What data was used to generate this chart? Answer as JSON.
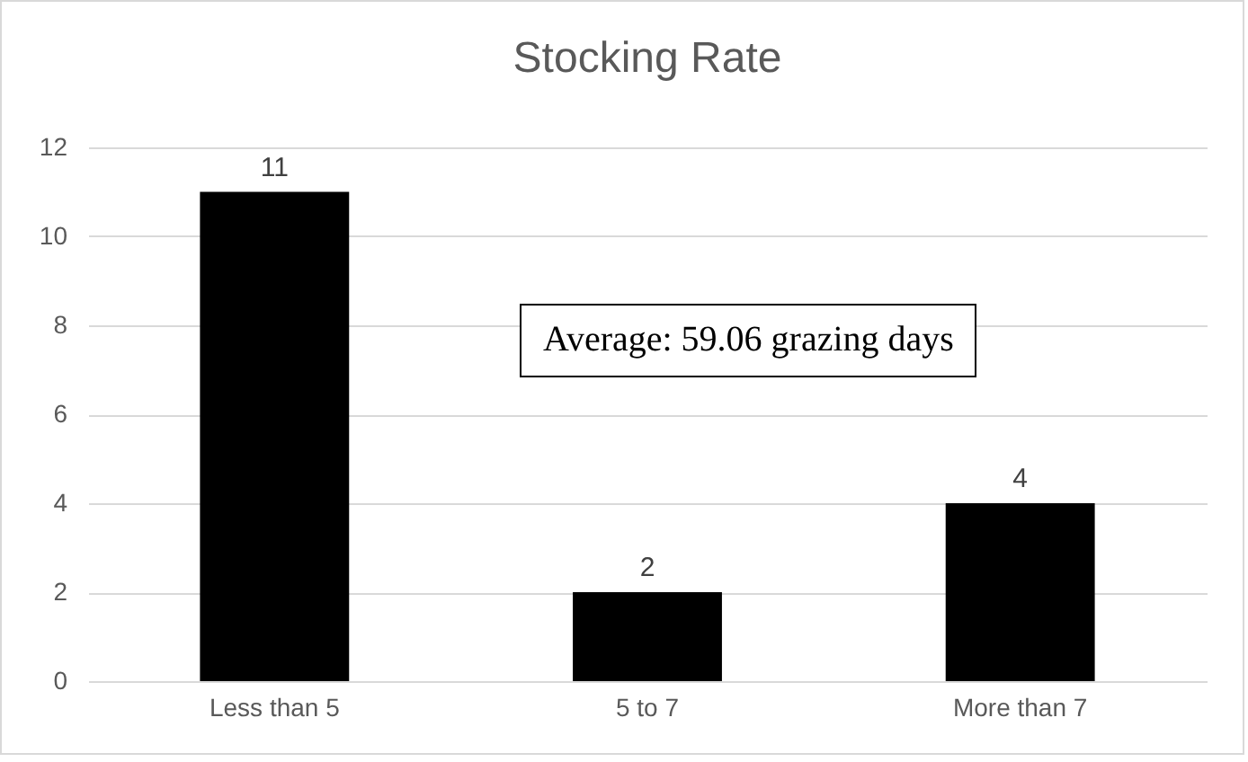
{
  "chart_data": {
    "type": "bar",
    "title": "Stocking Rate",
    "categories": [
      "Less than 5",
      "5 to 7",
      "More than 7"
    ],
    "values": [
      11,
      2,
      4
    ],
    "color": "#000000",
    "ylim": [
      0,
      12
    ],
    "yticks": [
      0,
      2,
      4,
      6,
      8,
      10,
      12
    ],
    "grid": "y",
    "data_labels": true,
    "annotations": [
      "Average: 59.06 grazing days"
    ]
  }
}
